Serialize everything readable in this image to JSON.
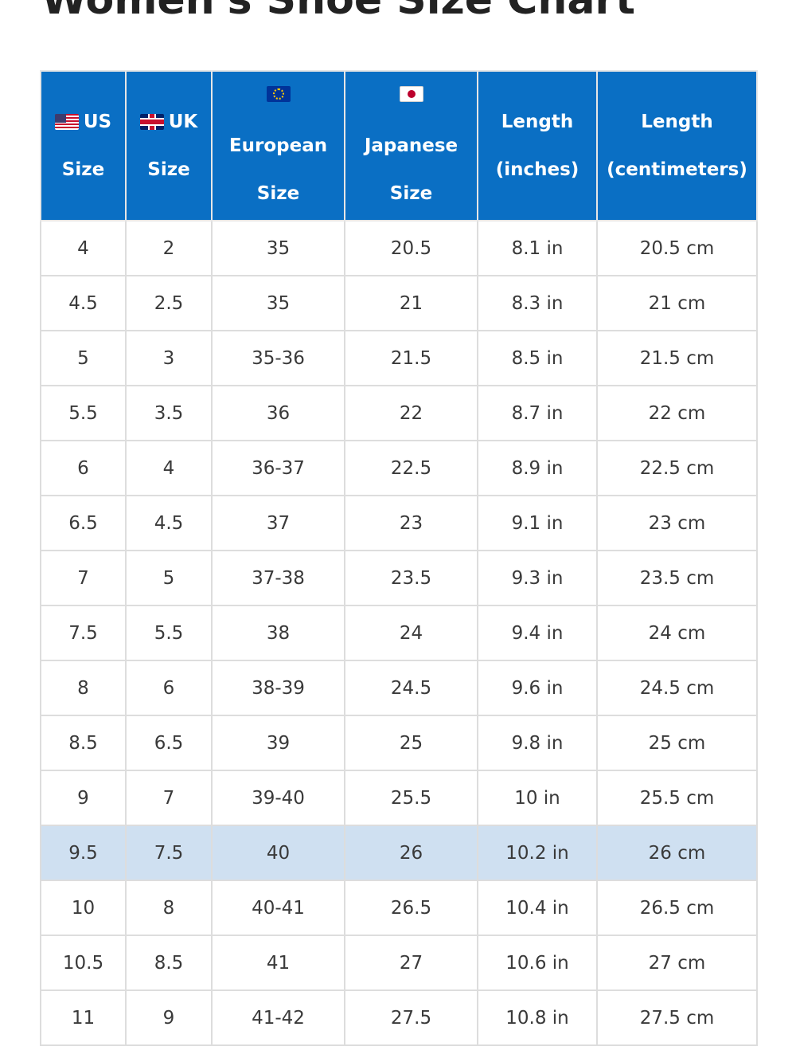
{
  "page": {
    "title": "Women's Shoe Size Chart"
  },
  "table": {
    "headers": [
      {
        "flag": "us-flag-icon",
        "line1": "US",
        "line2": "Size"
      },
      {
        "flag": "uk-flag-icon",
        "line1": "UK",
        "line2": "Size"
      },
      {
        "flag": "eu-flag-icon",
        "line1": "European",
        "line2": "Size"
      },
      {
        "flag": "japan-flag-icon",
        "line1": "Japanese",
        "line2": "Size"
      },
      {
        "line1": "Length",
        "line2": "(inches)"
      },
      {
        "line1": "Length",
        "line2": "(centimeters)"
      }
    ],
    "highlight_color": "#cfe0f1",
    "header_color": "#0a6fc4",
    "rows": [
      {
        "us": "4",
        "uk": "2",
        "eu": "35",
        "jp": "20.5",
        "in": "8.1 in",
        "cm": "20.5 cm"
      },
      {
        "us": "4.5",
        "uk": "2.5",
        "eu": "35",
        "jp": "21",
        "in": "8.3 in",
        "cm": "21 cm"
      },
      {
        "us": "5",
        "uk": "3",
        "eu": "35-36",
        "jp": "21.5",
        "in": "8.5 in",
        "cm": "21.5 cm"
      },
      {
        "us": "5.5",
        "uk": "3.5",
        "eu": "36",
        "jp": "22",
        "in": "8.7 in",
        "cm": "22 cm"
      },
      {
        "us": "6",
        "uk": "4",
        "eu": "36-37",
        "jp": "22.5",
        "in": "8.9 in",
        "cm": "22.5 cm"
      },
      {
        "us": "6.5",
        "uk": "4.5",
        "eu": "37",
        "jp": "23",
        "in": "9.1 in",
        "cm": "23 cm"
      },
      {
        "us": "7",
        "uk": "5",
        "eu": "37-38",
        "jp": "23.5",
        "in": "9.3 in",
        "cm": "23.5 cm"
      },
      {
        "us": "7.5",
        "uk": "5.5",
        "eu": "38",
        "jp": "24",
        "in": "9.4 in",
        "cm": "24 cm"
      },
      {
        "us": "8",
        "uk": "6",
        "eu": "38-39",
        "jp": "24.5",
        "in": "9.6 in",
        "cm": "24.5 cm"
      },
      {
        "us": "8.5",
        "uk": "6.5",
        "eu": "39",
        "jp": "25",
        "in": "9.8 in",
        "cm": "25 cm"
      },
      {
        "us": "9",
        "uk": "7",
        "eu": "39-40",
        "jp": "25.5",
        "in": "10 in",
        "cm": "25.5 cm"
      },
      {
        "us": "9.5",
        "uk": "7.5",
        "eu": "40",
        "jp": "26",
        "in": "10.2 in",
        "cm": "26 cm",
        "highlighted": true
      },
      {
        "us": "10",
        "uk": "8",
        "eu": "40-41",
        "jp": "26.5",
        "in": "10.4 in",
        "cm": "26.5 cm"
      },
      {
        "us": "10.5",
        "uk": "8.5",
        "eu": "41",
        "jp": "27",
        "in": "10.6 in",
        "cm": "27 cm"
      },
      {
        "us": "11",
        "uk": "9",
        "eu": "41-42",
        "jp": "27.5",
        "in": "10.8 in",
        "cm": "27.5 cm"
      }
    ]
  }
}
